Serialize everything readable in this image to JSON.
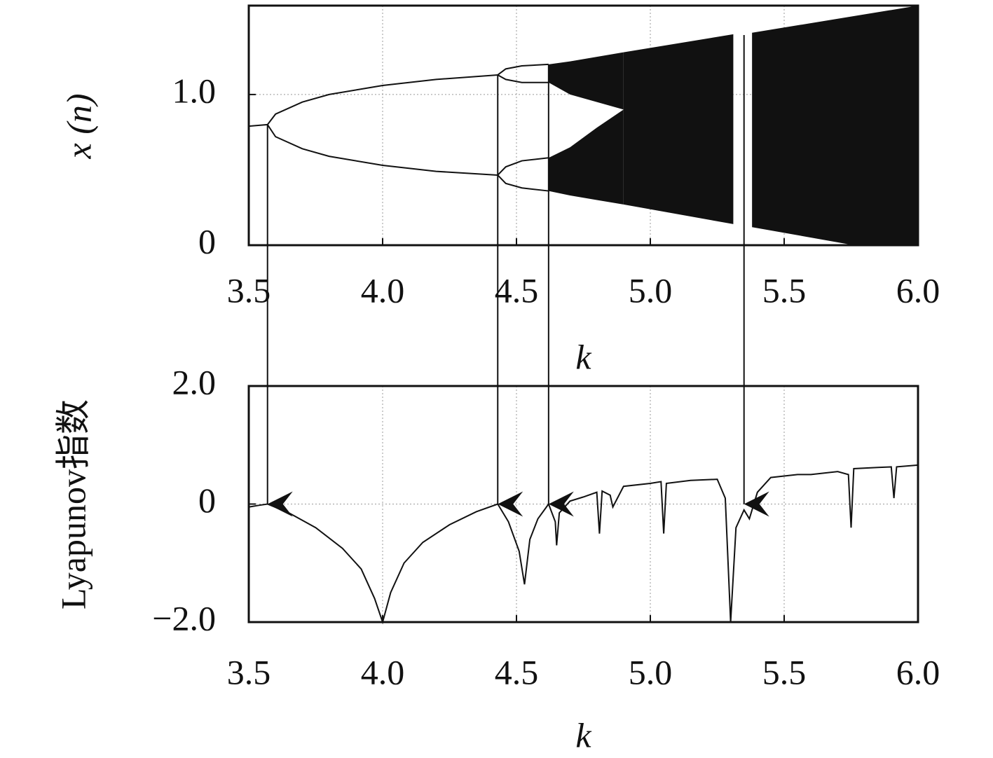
{
  "chart_data": [
    {
      "type": "bifurcation",
      "ylabel": "x (n)",
      "xlabel": "k",
      "color": "#111111",
      "xlim": [
        3.5,
        6.0
      ],
      "ylim": [
        0,
        1.59
      ],
      "xticks": [
        3.5,
        {
          "value": 4,
          "label": "4.0"
        },
        4.5,
        {
          "value": 5,
          "label": "5.0"
        },
        5.5,
        {
          "value": 6,
          "label": "6.0"
        }
      ],
      "yticks": [
        0,
        {
          "value": 1,
          "label": "1.0"
        }
      ],
      "grid": true,
      "series": [
        {
          "x": [
            3.5,
            3.57
          ],
          "values": [
            0.79,
            0.8
          ]
        },
        {
          "x": [
            3.57,
            3.6,
            3.7,
            3.8,
            4.0,
            4.2,
            4.43
          ],
          "values": [
            0.8,
            0.87,
            0.95,
            1.0,
            1.06,
            1.1,
            1.13
          ]
        },
        {
          "x": [
            3.57,
            3.6,
            3.7,
            3.8,
            4.0,
            4.2,
            4.43
          ],
          "values": [
            0.8,
            0.72,
            0.64,
            0.59,
            0.53,
            0.49,
            0.465
          ]
        },
        {
          "x": [
            4.43,
            4.46,
            4.52,
            4.62
          ],
          "values": [
            1.13,
            1.17,
            1.19,
            1.2
          ]
        },
        {
          "x": [
            4.43,
            4.46,
            4.52,
            4.62
          ],
          "values": [
            1.13,
            1.1,
            1.08,
            1.08
          ]
        },
        {
          "x": [
            4.43,
            4.46,
            4.52,
            4.62
          ],
          "values": [
            0.465,
            0.52,
            0.56,
            0.58
          ]
        },
        {
          "x": [
            4.43,
            4.46,
            4.52,
            4.62
          ],
          "values": [
            0.465,
            0.41,
            0.38,
            0.36
          ]
        }
      ],
      "bands": [
        {
          "x": [
            4.62,
            4.7,
            4.8,
            4.9
          ],
          "upper": [
            1.2,
            1.22,
            1.25,
            1.28
          ],
          "lower": [
            1.08,
            1.0,
            0.95,
            0.9
          ]
        },
        {
          "x": [
            4.62,
            4.7,
            4.8,
            4.9
          ],
          "upper": [
            0.58,
            0.65,
            0.78,
            0.9
          ],
          "lower": [
            0.36,
            0.33,
            0.3,
            0.27
          ]
        },
        {
          "x": [
            4.9,
            5.31
          ],
          "upper": [
            1.28,
            1.4
          ],
          "lower": [
            0.27,
            0.14
          ]
        },
        {
          "x": [
            5.38,
            5.76,
            6.0
          ],
          "upper": [
            1.41,
            1.52,
            1.59
          ],
          "lower": [
            0.12,
            0.0,
            0.0
          ]
        }
      ]
    },
    {
      "type": "line",
      "ylabel": "Lyapunov指数",
      "xlabel": "k",
      "color": "#111111",
      "xlim": [
        3.5,
        6.0
      ],
      "ylim": [
        -2,
        2
      ],
      "xticks": [
        3.5,
        {
          "value": 4,
          "label": "4.0"
        },
        4.5,
        {
          "value": 5,
          "label": "5.0"
        },
        5.5,
        {
          "value": 6,
          "label": "6.0"
        }
      ],
      "yticks": [
        {
          "value": -2,
          "label": "−2.0"
        },
        0,
        {
          "value": 2,
          "label": "2.0"
        }
      ],
      "grid": true,
      "x": [
        3.5,
        3.54,
        3.57,
        3.65,
        3.75,
        3.85,
        3.92,
        3.97,
        4.0,
        4.03,
        4.08,
        4.15,
        4.25,
        4.35,
        4.43,
        4.47,
        4.51,
        4.53,
        4.55,
        4.58,
        4.62,
        4.645,
        4.65,
        4.66,
        4.7,
        4.75,
        4.8,
        4.81,
        4.82,
        4.85,
        4.86,
        4.9,
        5.0,
        5.04,
        5.05,
        5.06,
        5.15,
        5.25,
        5.28,
        5.3,
        5.32,
        5.35,
        5.37,
        5.4,
        5.45,
        5.55,
        5.6,
        5.7,
        5.74,
        5.75,
        5.76,
        5.85,
        5.9,
        5.91,
        5.92,
        6.0
      ],
      "values": [
        -0.05,
        -0.02,
        0.0,
        -0.15,
        -0.4,
        -0.75,
        -1.1,
        -1.6,
        -2.0,
        -1.5,
        -1.0,
        -0.65,
        -0.35,
        -0.13,
        0.0,
        -0.3,
        -0.8,
        -1.36,
        -0.6,
        -0.25,
        0.0,
        -0.3,
        -0.7,
        -0.15,
        0.05,
        0.12,
        0.2,
        -0.5,
        0.22,
        0.15,
        -0.05,
        0.3,
        0.35,
        0.38,
        -0.5,
        0.35,
        0.4,
        0.42,
        0.1,
        -2.0,
        -0.4,
        -0.1,
        -0.25,
        0.2,
        0.45,
        0.5,
        0.5,
        0.55,
        0.5,
        -0.4,
        0.6,
        0.62,
        0.63,
        0.1,
        0.63,
        0.66
      ],
      "arrows": {
        "x": [
          3.57,
          4.43,
          4.62,
          5.35
        ]
      }
    }
  ]
}
